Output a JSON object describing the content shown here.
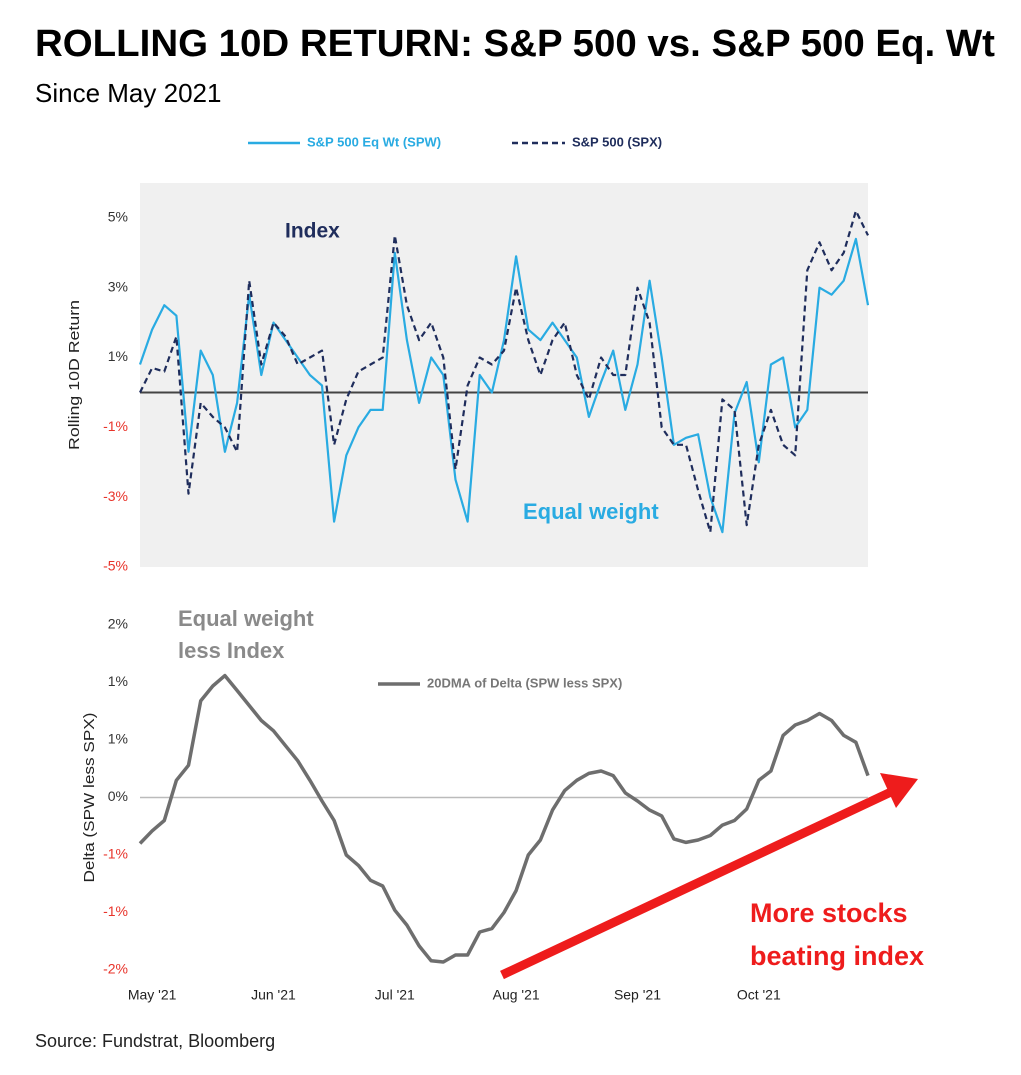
{
  "title": "ROLLING 10D RETURN: S&P 500 vs. S&P 500 Eq. Wt",
  "subtitle": "Since May 2021",
  "source": "Source: Fundstrat, Bloomberg",
  "chart_data": [
    {
      "type": "line",
      "y_label": "Rolling 10D Return",
      "background": "#f0f0f0",
      "negative_tick_color": "#e8332a",
      "ylim": [
        -5,
        6
      ],
      "yticks": [
        {
          "value": 5,
          "label": "5%"
        },
        {
          "value": 3,
          "label": "3%"
        },
        {
          "value": 1,
          "label": "1%"
        },
        {
          "value": -1,
          "label": "-1%"
        },
        {
          "value": -3,
          "label": "-3%"
        },
        {
          "value": -5,
          "label": "-5%"
        }
      ],
      "annotations": [
        {
          "lines": [
            "Index"
          ],
          "color": "#1f2d5c"
        },
        {
          "lines": [
            "Equal weight"
          ],
          "color": "#29abe2"
        }
      ],
      "series": [
        {
          "name": "S&P 500 Eq Wt (SPW)",
          "color": "#29abe2",
          "style": "solid",
          "values": [
            0.8,
            1.8,
            2.5,
            2.2,
            -1.7,
            1.2,
            0.5,
            -1.7,
            -0.3,
            2.8,
            0.5,
            2.0,
            1.5,
            1.0,
            0.5,
            0.2,
            -3.7,
            -1.8,
            -1.0,
            -0.5,
            -0.5,
            4.0,
            1.5,
            -0.3,
            1.0,
            0.5,
            -2.5,
            -3.7,
            0.5,
            0,
            1.5,
            3.9,
            1.8,
            1.5,
            2.0,
            1.5,
            1.0,
            -0.7,
            0.3,
            1.2,
            -0.5,
            0.8,
            3.2,
            1.0,
            -1.5,
            -1.3,
            -1.2,
            -3.0,
            -4.0,
            -0.6,
            0.3,
            -2.0,
            0.8,
            1.0,
            -1.0,
            -0.5,
            3.0,
            2.8,
            3.2,
            4.4,
            2.5
          ]
        },
        {
          "name": "S&P 500 (SPX)",
          "color": "#1f2d5c",
          "style": "dashed",
          "values": [
            0,
            0.7,
            0.6,
            1.6,
            -2.9,
            -0.3,
            -0.7,
            -1.0,
            -1.7,
            3.2,
            0.8,
            2.0,
            1.6,
            0.8,
            1.0,
            1.2,
            -1.5,
            -0.2,
            0.6,
            0.8,
            1.0,
            4.5,
            2.5,
            1.5,
            2.0,
            1.0,
            -2.2,
            0.2,
            1.0,
            0.8,
            1.2,
            3.0,
            1.5,
            0.5,
            1.5,
            2.0,
            0.5,
            -0.2,
            1.0,
            0.5,
            0.5,
            3.0,
            2.0,
            -1.0,
            -1.5,
            -1.5,
            -2.8,
            -4.0,
            -0.2,
            -0.5,
            -3.8,
            -1.5,
            -0.5,
            -1.5,
            -1.8,
            3.5,
            4.3,
            3.5,
            4.0,
            5.2,
            4.5
          ]
        }
      ]
    },
    {
      "type": "line",
      "y_label": "Delta (SPW less SPX)",
      "negative_tick_color": "#e8332a",
      "categories": [
        null,
        "May '21",
        null,
        null,
        null,
        null,
        null,
        null,
        null,
        null,
        null,
        "Jun '21",
        null,
        null,
        null,
        null,
        null,
        null,
        null,
        null,
        null,
        "Jul '21",
        null,
        null,
        null,
        null,
        null,
        null,
        null,
        null,
        null,
        "Aug '21",
        null,
        null,
        null,
        null,
        null,
        null,
        null,
        null,
        null,
        "Sep '21",
        null,
        null,
        null,
        null,
        null,
        null,
        null,
        null,
        null,
        "Oct '21",
        null,
        null,
        null,
        null,
        null,
        null,
        null,
        null,
        null
      ],
      "ylim": [
        -1.5,
        1.5
      ],
      "yticks": [
        {
          "value": 1.5,
          "label": "2%"
        },
        {
          "value": 1.0,
          "label": "1%"
        },
        {
          "value": 0.5,
          "label": "1%"
        },
        {
          "value": 0,
          "label": "0%"
        },
        {
          "value": -0.5,
          "label": "-1%"
        },
        {
          "value": -1.0,
          "label": "-1%"
        },
        {
          "value": -1.5,
          "label": "-2%"
        }
      ],
      "annotations": [
        {
          "lines": [
            "Equal weight",
            "less Index"
          ],
          "color": "#8a8a8a"
        },
        {
          "lines": [
            "More stocks",
            "beating index"
          ],
          "color": "#ee1c1c"
        }
      ],
      "series": [
        {
          "name": "20DMA of Delta (SPW less SPX)",
          "color": "#6e6e6e",
          "style": "solid",
          "values": [
            -0.4,
            -0.29,
            -0.2,
            0.15,
            0.28,
            0.84,
            0.97,
            1.06,
            0.93,
            0.8,
            0.67,
            0.58,
            0.45,
            0.32,
            0.15,
            -0.03,
            -0.2,
            -0.5,
            -0.59,
            -0.72,
            -0.77,
            -0.98,
            -1.11,
            -1.29,
            -1.42,
            -1.43,
            -1.37,
            -1.37,
            -1.17,
            -1.14,
            -1.0,
            -0.81,
            -0.5,
            -0.37,
            -0.11,
            0.06,
            0.15,
            0.21,
            0.23,
            0.19,
            0.04,
            -0.03,
            -0.11,
            -0.16,
            -0.36,
            -0.39,
            -0.37,
            -0.33,
            -0.24,
            -0.2,
            -0.1,
            0.15,
            0.23,
            0.54,
            0.63,
            0.67,
            0.73,
            0.67,
            0.54,
            0.48,
            0.19
          ]
        }
      ]
    }
  ]
}
